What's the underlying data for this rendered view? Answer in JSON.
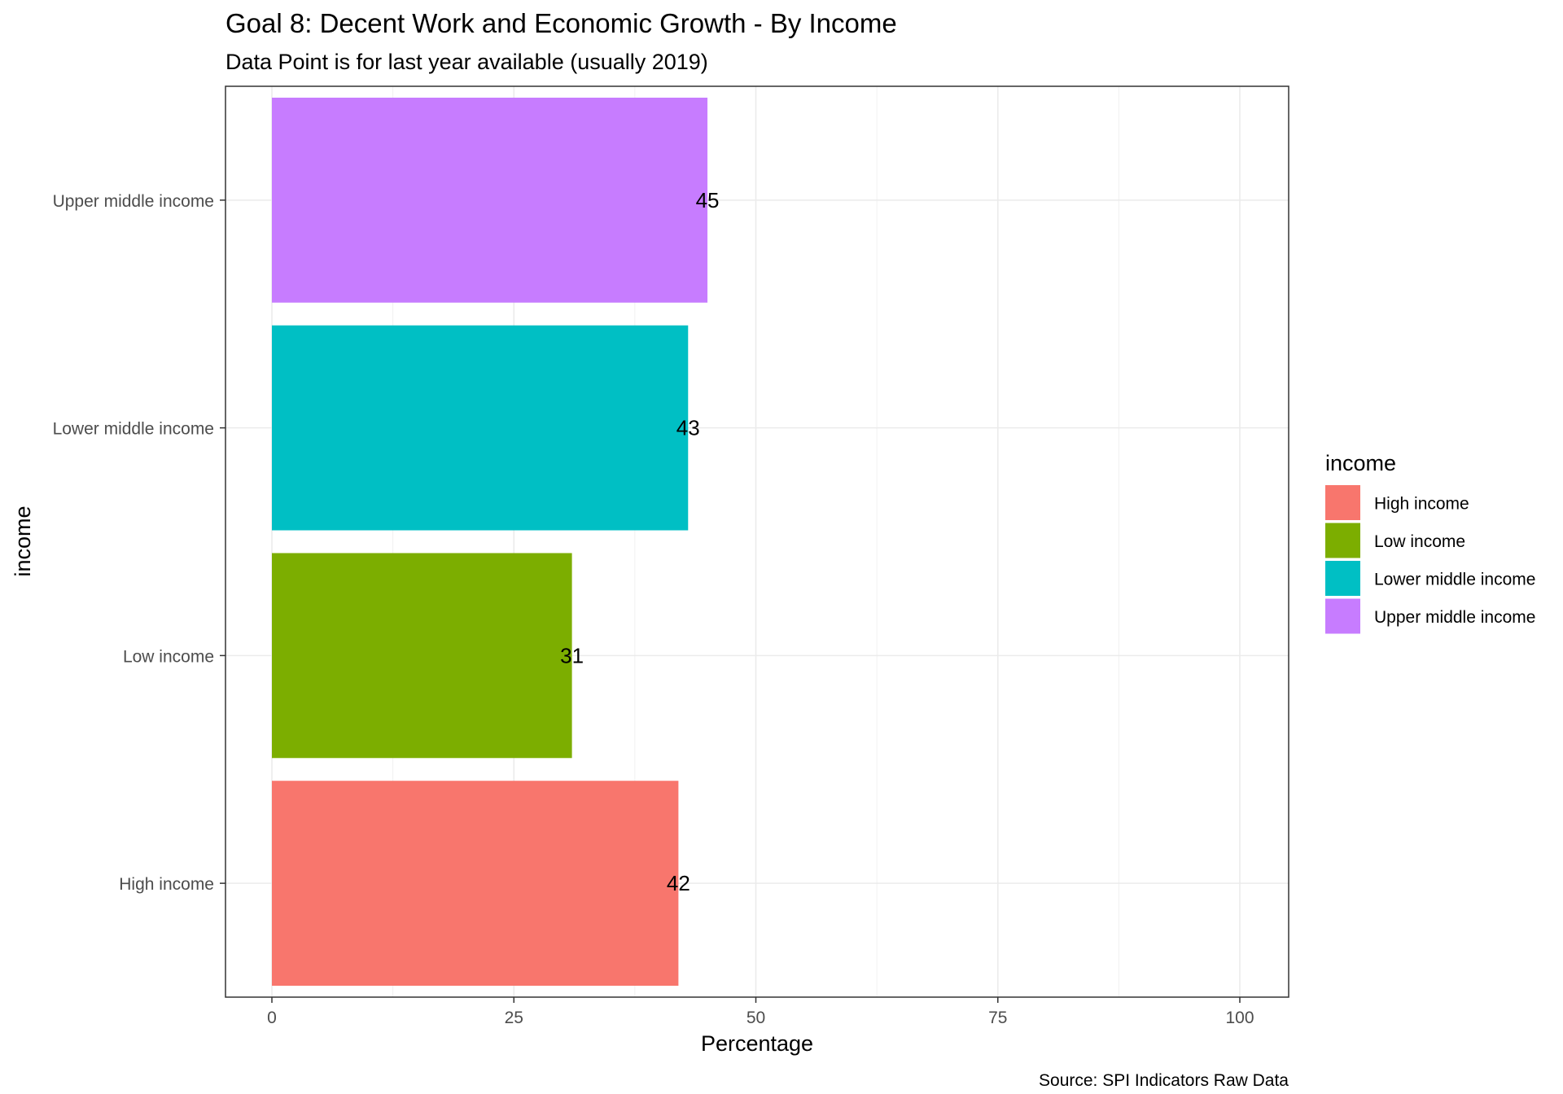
{
  "chart_data": {
    "type": "bar",
    "orientation": "horizontal",
    "title": "Goal 8: Decent Work and Economic Growth - By Income",
    "subtitle": "Data Point is for last year available (usually 2019)",
    "xlabel": "Percentage",
    "ylabel": "income",
    "caption": "Source: SPI Indicators Raw Data",
    "categories": [
      "High income",
      "Low income",
      "Lower middle income",
      "Upper middle income"
    ],
    "values": [
      42,
      31,
      43,
      45
    ],
    "data_labels": [
      "42",
      "31",
      "43",
      "45"
    ],
    "colors": [
      "#F8766D",
      "#7CAE00",
      "#00BFC4",
      "#C77CFF"
    ],
    "xlim": [
      0,
      100
    ],
    "x_ticks": [
      0,
      25,
      50,
      75,
      100
    ],
    "x_tick_labels": [
      "0",
      "25",
      "50",
      "75",
      "100"
    ],
    "grid": true,
    "legend": {
      "title": "income",
      "position": "right",
      "entries": [
        "High income",
        "Low income",
        "Lower middle income",
        "Upper middle income"
      ]
    }
  }
}
